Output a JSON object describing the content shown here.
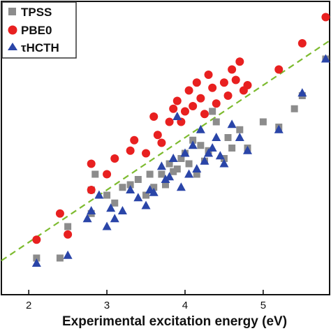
{
  "chart_data": {
    "type": "scatter",
    "title": "",
    "xlabel": "Experimental excitation energy (eV)",
    "ylabel": "",
    "xlim": [
      1.65,
      5.85
    ],
    "ylim": [
      1.0,
      6.6
    ],
    "xticks": [
      2,
      3,
      4,
      5
    ],
    "grid": false,
    "legend_position": "top-left",
    "reference_line": {
      "type": "y=x",
      "style": "dashed",
      "color": "#7dbb2f"
    },
    "series": [
      {
        "name": "TPSS",
        "marker": "square",
        "color": "#8c8c8c",
        "x": [
          2.1,
          2.4,
          2.5,
          2.8,
          2.8,
          2.85,
          3.0,
          3.1,
          3.2,
          3.3,
          3.4,
          3.5,
          3.55,
          3.6,
          3.7,
          3.75,
          3.8,
          3.85,
          3.9,
          3.95,
          4.0,
          4.05,
          4.1,
          4.15,
          4.2,
          4.25,
          4.3,
          4.35,
          4.4,
          4.5,
          4.55,
          4.6,
          4.7,
          4.8,
          5.0,
          5.2,
          5.4,
          5.5,
          5.8
        ],
        "y": [
          1.7,
          1.7,
          2.3,
          2.55,
          3.0,
          3.3,
          2.9,
          2.75,
          3.05,
          3.1,
          3.2,
          2.9,
          3.3,
          3.05,
          3.3,
          3.1,
          3.5,
          3.35,
          3.4,
          3.6,
          3.7,
          3.5,
          3.95,
          3.3,
          3.85,
          3.55,
          3.75,
          4.5,
          4.3,
          3.6,
          4.0,
          3.8,
          4.15,
          3.8,
          4.3,
          4.2,
          4.55,
          4.8,
          5.5
        ]
      },
      {
        "name": "PBE0",
        "marker": "circle",
        "color": "#e82020",
        "x": [
          2.1,
          2.4,
          2.5,
          2.8,
          2.8,
          3.0,
          3.1,
          3.3,
          3.35,
          3.5,
          3.6,
          3.65,
          3.7,
          3.8,
          3.85,
          3.9,
          3.95,
          4.0,
          4.05,
          4.1,
          4.15,
          4.2,
          4.25,
          4.3,
          4.35,
          4.4,
          4.5,
          4.55,
          4.6,
          4.65,
          4.7,
          4.75,
          4.8,
          5.2,
          5.5,
          5.8
        ],
        "y": [
          2.05,
          2.55,
          2.15,
          3.5,
          3.0,
          3.3,
          3.6,
          3.75,
          3.95,
          3.7,
          4.4,
          4.05,
          3.9,
          4.3,
          4.55,
          4.7,
          4.3,
          4.5,
          4.9,
          4.6,
          5.05,
          4.75,
          4.45,
          5.2,
          4.95,
          4.65,
          5.05,
          4.8,
          5.3,
          5.1,
          5.45,
          4.9,
          5.0,
          5.3,
          5.8,
          6.3
        ]
      },
      {
        "name": "τHCTH",
        "marker": "triangle",
        "color": "#2a45a8",
        "x": [
          2.1,
          2.5,
          2.75,
          2.8,
          2.9,
          3.0,
          3.05,
          3.1,
          3.2,
          3.3,
          3.4,
          3.5,
          3.55,
          3.6,
          3.7,
          3.75,
          3.8,
          3.85,
          3.9,
          3.95,
          4.0,
          4.05,
          4.1,
          4.15,
          4.2,
          4.25,
          4.3,
          4.35,
          4.4,
          4.45,
          4.5,
          4.6,
          4.7,
          4.8,
          5.2,
          5.5,
          5.8
        ],
        "y": [
          1.6,
          1.75,
          2.45,
          2.6,
          2.9,
          2.3,
          2.65,
          2.45,
          2.6,
          3.0,
          2.85,
          2.7,
          3.0,
          2.95,
          3.45,
          3.2,
          3.25,
          3.6,
          4.4,
          3.05,
          3.7,
          3.3,
          3.85,
          3.4,
          4.15,
          3.55,
          3.7,
          3.8,
          4.0,
          3.65,
          3.5,
          4.25,
          4.0,
          3.75,
          4.15,
          4.85,
          5.5
        ]
      }
    ]
  }
}
